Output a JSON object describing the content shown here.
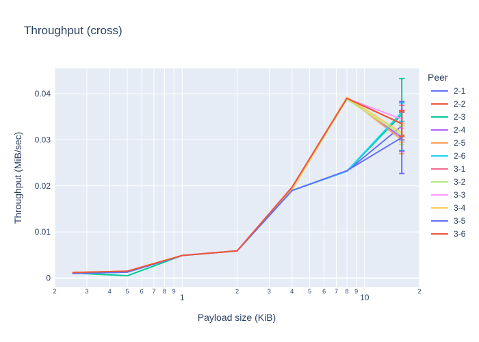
{
  "chart_data": {
    "type": "line",
    "title": "Throughput (cross)",
    "xlabel": "Payload size (KiB)",
    "ylabel": "Throughput (MiB/sec)",
    "x_scale": "log",
    "xlim": [
      0.2,
      20
    ],
    "ylim": [
      -0.002,
      0.0455
    ],
    "x_major_ticks": [
      {
        "value": 1,
        "label": "1"
      },
      {
        "value": 10,
        "label": "10"
      }
    ],
    "x_minor_ticks": [
      {
        "value": 0.2,
        "label": "2"
      },
      {
        "value": 0.3,
        "label": "3"
      },
      {
        "value": 0.4,
        "label": "4"
      },
      {
        "value": 0.5,
        "label": "5"
      },
      {
        "value": 0.6,
        "label": "6"
      },
      {
        "value": 0.7,
        "label": "7"
      },
      {
        "value": 0.8,
        "label": "8"
      },
      {
        "value": 0.9,
        "label": "9"
      },
      {
        "value": 2,
        "label": "2"
      },
      {
        "value": 3,
        "label": "3"
      },
      {
        "value": 4,
        "label": "4"
      },
      {
        "value": 5,
        "label": "5"
      },
      {
        "value": 6,
        "label": "6"
      },
      {
        "value": 7,
        "label": "7"
      },
      {
        "value": 8,
        "label": "8"
      },
      {
        "value": 9,
        "label": "9"
      },
      {
        "value": 20,
        "label": "2"
      }
    ],
    "y_ticks": [
      {
        "value": 0,
        "label": "0"
      },
      {
        "value": 0.01,
        "label": "0.01"
      },
      {
        "value": 0.02,
        "label": "0.02"
      },
      {
        "value": 0.03,
        "label": "0.03"
      },
      {
        "value": 0.04,
        "label": "0.04"
      }
    ],
    "x": [
      0.25,
      0.5,
      1,
      2,
      4,
      8,
      16
    ],
    "legend_title": "Peer",
    "legend_position": "right",
    "grid": true,
    "series": [
      {
        "name": "2-1",
        "color": "#636efa",
        "values": [
          0.001,
          0.0013,
          0.0049,
          0.0059,
          0.019,
          0.0232,
          0.033
        ],
        "error": [
          0,
          0,
          0,
          0,
          0,
          0,
          0.003
        ]
      },
      {
        "name": "2-2",
        "color": "#EF553B",
        "values": [
          0.0012,
          0.0015,
          0.0049,
          0.0059,
          0.0197,
          0.039,
          0.0335
        ],
        "error": [
          0,
          0,
          0,
          0,
          0,
          0,
          0.0025
        ]
      },
      {
        "name": "2-3",
        "color": "#00cc96",
        "values": [
          0.0011,
          0.0005,
          0.0049,
          0.0059,
          0.019,
          0.0232,
          0.0355
        ],
        "error": [
          0,
          0,
          0,
          0,
          0,
          0,
          0.0078
        ]
      },
      {
        "name": "2-4",
        "color": "#ab63fa",
        "values": [
          0.001,
          0.0013,
          0.0049,
          0.0059,
          0.0192,
          0.039,
          0.0305
        ],
        "error": [
          0,
          0,
          0,
          0,
          0,
          0,
          0.003
        ]
      },
      {
        "name": "2-5",
        "color": "#FFA15A",
        "values": [
          0.0012,
          0.0015,
          0.0049,
          0.0059,
          0.0197,
          0.0392,
          0.03
        ],
        "error": [
          0,
          0,
          0,
          0,
          0,
          0,
          0.003
        ]
      },
      {
        "name": "2-6",
        "color": "#19d3f3",
        "values": [
          0.001,
          0.0013,
          0.0049,
          0.0059,
          0.019,
          0.0232,
          0.036
        ],
        "error": [
          0,
          0,
          0,
          0,
          0,
          0,
          0.002
        ]
      },
      {
        "name": "3-1",
        "color": "#FF6692",
        "values": [
          0.0012,
          0.0014,
          0.0049,
          0.0059,
          0.0197,
          0.039,
          0.0335
        ],
        "error": [
          0,
          0,
          0,
          0,
          0,
          0,
          0.004
        ]
      },
      {
        "name": "3-2",
        "color": "#B6E880",
        "values": [
          0.0011,
          0.0014,
          0.0049,
          0.0059,
          0.0192,
          0.0388,
          0.031
        ],
        "error": [
          0,
          0,
          0,
          0,
          0,
          0,
          0.002
        ]
      },
      {
        "name": "3-3",
        "color": "#FF97FF",
        "values": [
          0.0012,
          0.0014,
          0.0049,
          0.0059,
          0.0197,
          0.039,
          0.0345
        ],
        "error": [
          0,
          0,
          0,
          0,
          0,
          0,
          0.002
        ]
      },
      {
        "name": "3-4",
        "color": "#FECB52",
        "values": [
          0.0012,
          0.0015,
          0.0049,
          0.0059,
          0.0192,
          0.0392,
          0.0315
        ],
        "error": [
          0,
          0,
          0,
          0,
          0,
          0,
          0.002
        ]
      },
      {
        "name": "3-5",
        "color": "#636efa",
        "values": [
          0.001,
          0.0013,
          0.0049,
          0.0059,
          0.019,
          0.0233,
          0.0305
        ],
        "error": [
          0,
          0,
          0,
          0,
          0,
          0,
          0.0078
        ]
      },
      {
        "name": "3-6",
        "color": "#EF553B",
        "values": [
          0.0012,
          0.0015,
          0.0049,
          0.0059,
          0.0197,
          0.039,
          0.0335
        ],
        "error": [
          0,
          0,
          0,
          0,
          0,
          0,
          0.0028
        ]
      }
    ]
  }
}
